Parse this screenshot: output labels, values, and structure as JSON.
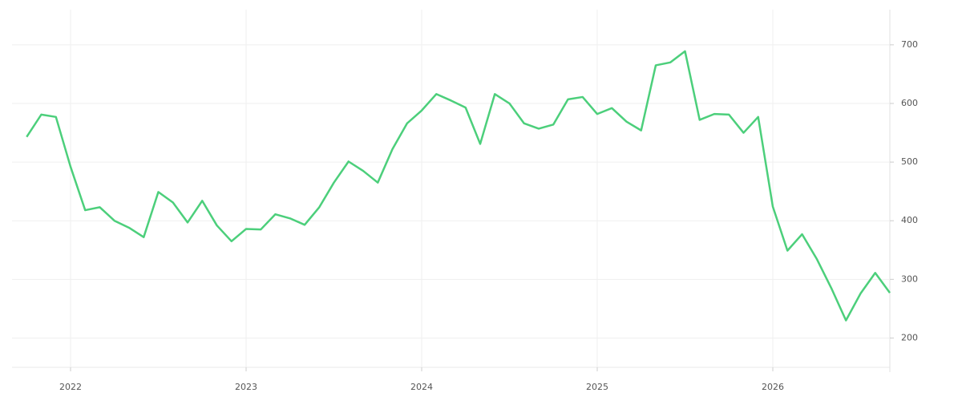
{
  "chart_data": {
    "type": "line",
    "x": [
      "2021-10",
      "2021-11",
      "2021-12",
      "2022-01",
      "2022-02",
      "2022-03",
      "2022-04",
      "2022-05",
      "2022-06",
      "2022-07",
      "2022-08",
      "2022-09",
      "2022-10",
      "2022-11",
      "2022-12",
      "2023-01",
      "2023-02",
      "2023-03",
      "2023-04",
      "2023-05",
      "2023-06",
      "2023-07",
      "2023-08",
      "2023-09",
      "2023-10",
      "2023-11",
      "2023-12",
      "2024-01",
      "2024-02",
      "2024-03",
      "2024-04",
      "2024-05",
      "2024-06",
      "2024-07",
      "2024-08",
      "2024-09",
      "2024-10",
      "2024-11",
      "2024-12",
      "2025-01",
      "2025-02",
      "2025-03",
      "2025-04",
      "2025-05",
      "2025-06",
      "2025-07",
      "2025-08",
      "2025-09",
      "2025-10",
      "2025-11",
      "2025-12",
      "2026-01",
      "2026-02",
      "2026-03",
      "2026-04",
      "2026-05",
      "2026-06",
      "2026-07",
      "2026-08",
      "2026-09"
    ],
    "series": [
      {
        "color": "#4ccf7b",
        "values": [
          543,
          581,
          577,
          492,
          418,
          423,
          400,
          388,
          372,
          449,
          431,
          397,
          434,
          392,
          365,
          386,
          385,
          411,
          404,
          393,
          423,
          465,
          501,
          485,
          465,
          522,
          566,
          588,
          616,
          605,
          593,
          531,
          616,
          600,
          566,
          557,
          564,
          607,
          611,
          582,
          592,
          569,
          554,
          665,
          670,
          689,
          572,
          582,
          581,
          550,
          577,
          424,
          349,
          377,
          335,
          285,
          230,
          276,
          311,
          277
        ]
      }
    ],
    "xlim": [
      "2021-09",
      "2026-09"
    ],
    "xticks": [
      2022,
      2023,
      2024,
      2025,
      2026
    ],
    "ylim": [
      150,
      760
    ],
    "yticks": [
      200,
      300,
      400,
      500,
      600,
      700
    ],
    "grid": true
  }
}
